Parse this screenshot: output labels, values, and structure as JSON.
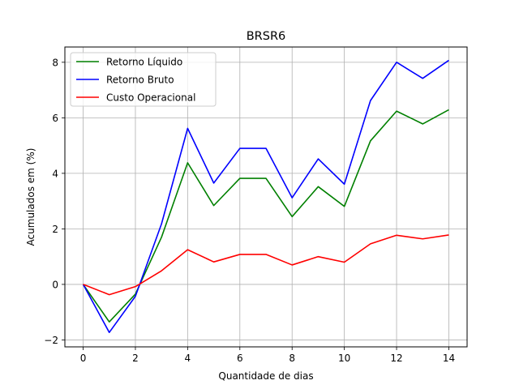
{
  "chart_data": {
    "type": "line",
    "title": "BRSR6",
    "xlabel": "Quantidade de dias",
    "ylabel": "Acumulados em (%)",
    "x": [
      0,
      1,
      2,
      3,
      4,
      5,
      6,
      7,
      8,
      9,
      10,
      11,
      12,
      13,
      14
    ],
    "xlim": [
      -0.7,
      14.7
    ],
    "ylim": [
      -2.25,
      8.55
    ],
    "xticks": [
      0,
      2,
      4,
      6,
      8,
      10,
      12,
      14
    ],
    "yticks": [
      -2,
      0,
      2,
      4,
      6,
      8
    ],
    "xtick_labels": [
      "0",
      "2",
      "4",
      "6",
      "8",
      "10",
      "12",
      "14"
    ],
    "ytick_labels": [
      "−2",
      "0",
      "2",
      "4",
      "6",
      "8"
    ],
    "grid": true,
    "legend_position": "top-left",
    "series": [
      {
        "name": "Retorno Líquido",
        "color": "#008000",
        "values": [
          0,
          -1.35,
          -0.35,
          1.7,
          4.38,
          2.84,
          3.82,
          3.82,
          2.44,
          3.52,
          2.81,
          5.17,
          6.24,
          5.78,
          6.29
        ]
      },
      {
        "name": "Retorno Bruto",
        "color": "#0000ff",
        "values": [
          0,
          -1.73,
          -0.43,
          2.18,
          5.62,
          3.65,
          4.9,
          4.9,
          3.12,
          4.52,
          3.61,
          6.62,
          8.0,
          7.42,
          8.07
        ]
      },
      {
        "name": "Custo Operacional",
        "color": "#ff0000",
        "values": [
          0,
          -0.37,
          -0.08,
          0.49,
          1.25,
          0.81,
          1.08,
          1.08,
          0.7,
          1.0,
          0.8,
          1.46,
          1.77,
          1.64,
          1.78
        ]
      }
    ]
  }
}
